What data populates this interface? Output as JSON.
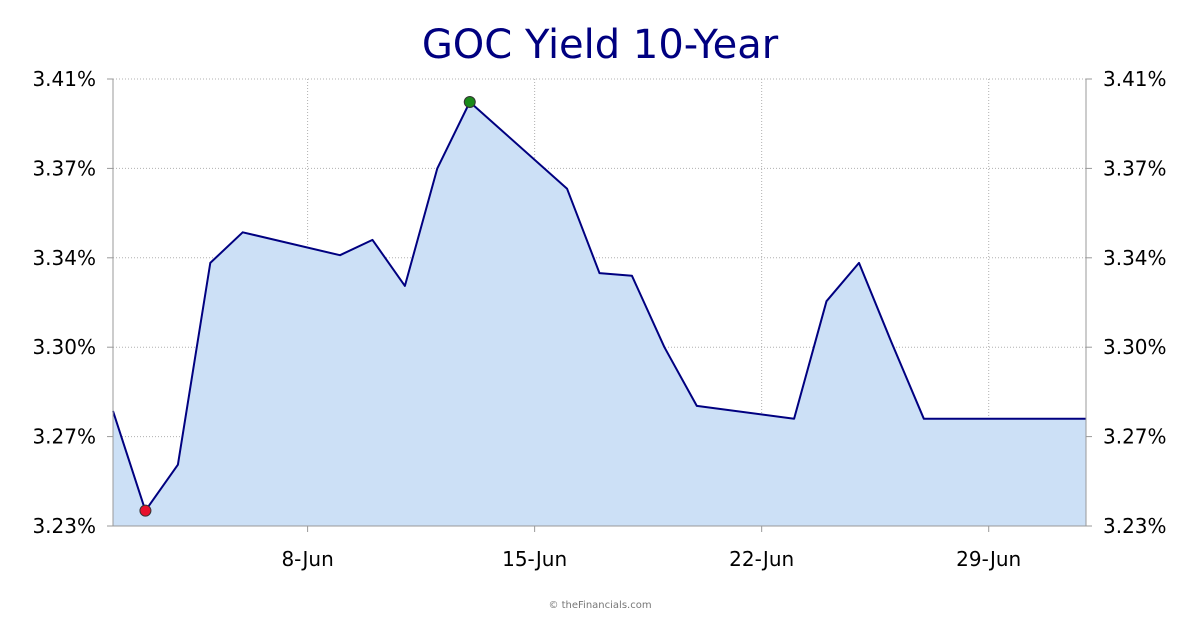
{
  "chart_data": {
    "type": "area",
    "title": "GOC Yield 10-Year",
    "xlabel": "",
    "ylabel": "",
    "x_tick_labels": [
      {
        "day": 8,
        "label": "8-Jun"
      },
      {
        "day": 15,
        "label": "15-Jun"
      },
      {
        "day": 22,
        "label": "22-Jun"
      },
      {
        "day": 29,
        "label": "29-Jun"
      }
    ],
    "y_ticks": [
      {
        "value": 3.23,
        "label": "3.23%"
      },
      {
        "value": 3.265,
        "label": "3.27%"
      },
      {
        "value": 3.3,
        "label": "3.30%"
      },
      {
        "value": 3.335,
        "label": "3.34%"
      },
      {
        "value": 3.37,
        "label": "3.37%"
      },
      {
        "value": 3.405,
        "label": "3.41%"
      }
    ],
    "xlim": [
      2,
      32
    ],
    "ylim": [
      3.23,
      3.405
    ],
    "grid": true,
    "y_axis_both_sides": true,
    "line_color": "#000080",
    "fill_color": "#cce0f6",
    "min_marker_color": "#e8112d",
    "max_marker_color": "#1a8a1a",
    "series": [
      {
        "x": [
          2,
          3,
          4,
          5,
          6,
          9,
          10,
          11,
          12,
          13,
          16,
          17,
          18,
          19,
          20,
          23,
          24,
          25,
          26,
          27,
          28,
          29,
          30,
          31,
          32
        ],
        "values": [
          3.275,
          3.236,
          3.254,
          3.333,
          3.345,
          3.336,
          3.342,
          3.324,
          3.37,
          3.396,
          3.362,
          3.329,
          3.328,
          3.3,
          3.277,
          3.272,
          3.318,
          3.333,
          3.302,
          3.272,
          3.272,
          3.272,
          3.272,
          3.272,
          3.272
        ]
      }
    ],
    "min_point": {
      "x": 3,
      "value": 3.236
    },
    "max_point": {
      "x": 13,
      "value": 3.396
    }
  },
  "footer": {
    "credit": "© theFinancials.com"
  }
}
